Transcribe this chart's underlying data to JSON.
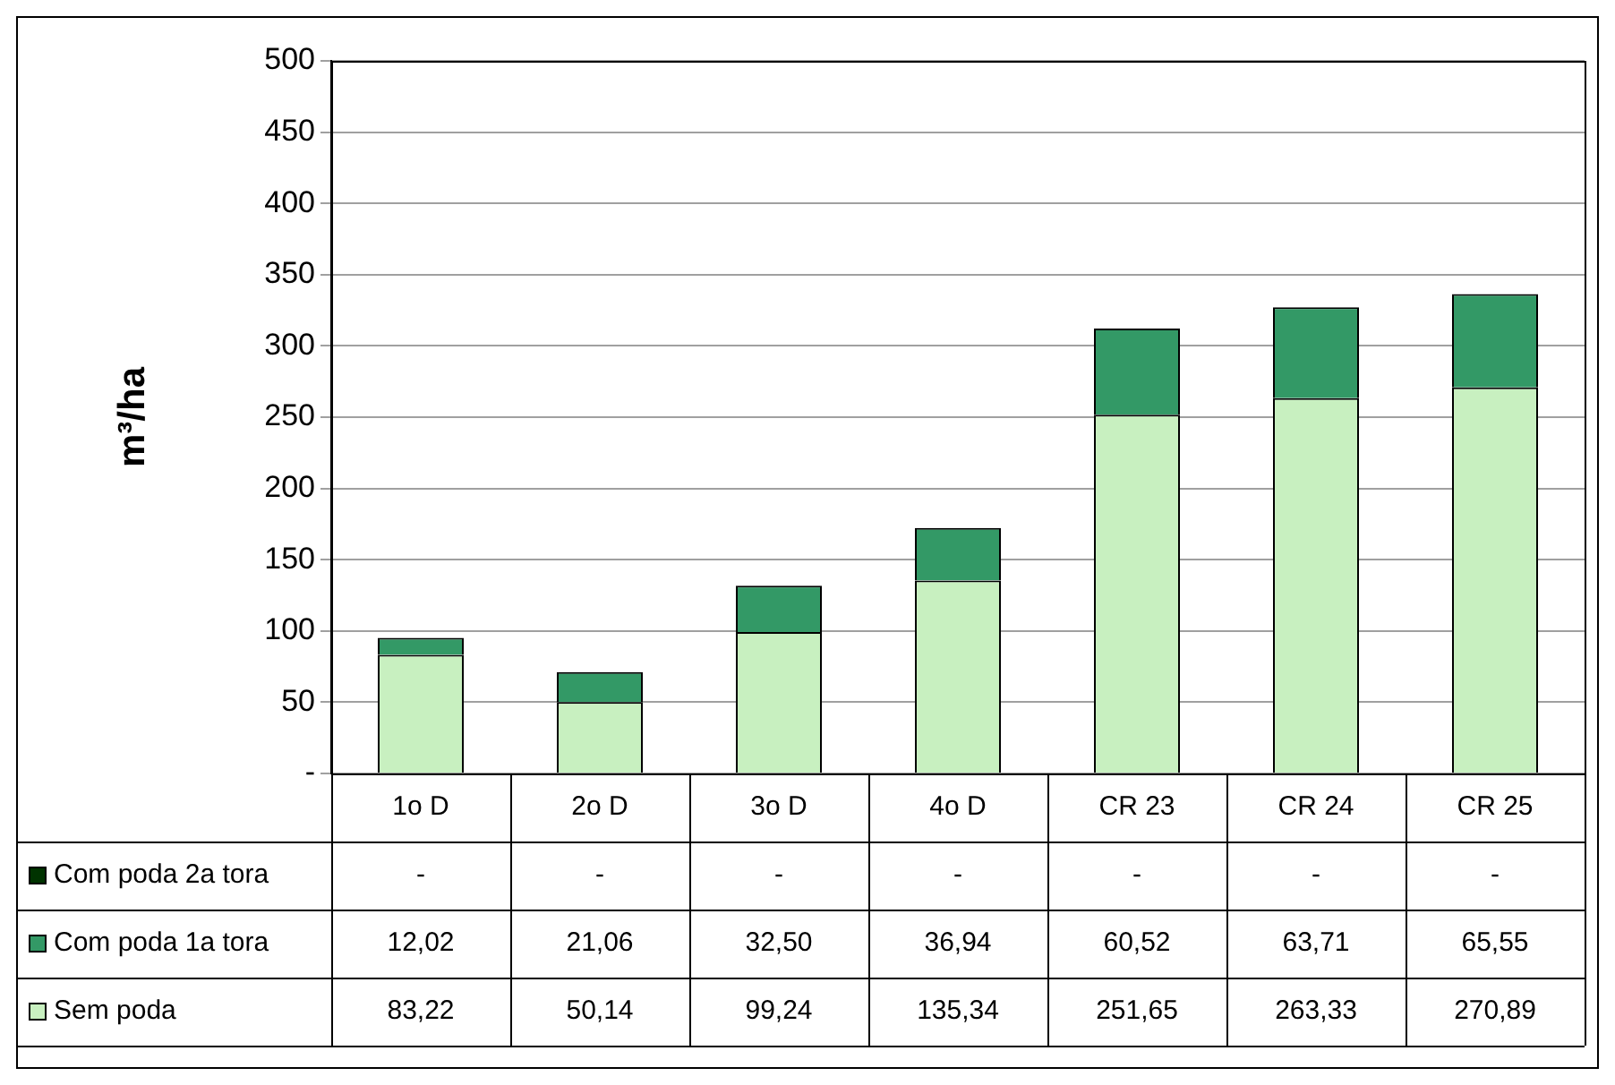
{
  "chart_data": {
    "type": "bar",
    "stacked": true,
    "ylabel": "m³/ha",
    "categories": [
      "1o D",
      "2o D",
      "3o D",
      "4o D",
      "CR 23",
      "CR 24",
      "CR 25"
    ],
    "series": [
      {
        "name": "Sem poda",
        "color": "#c8f0c0",
        "values": [
          83.22,
          50.14,
          99.24,
          135.34,
          251.65,
          263.33,
          270.89
        ],
        "value_labels": [
          "83,22",
          "50,14",
          "99,24",
          "135,34",
          "251,65",
          "263,33",
          "270,89"
        ]
      },
      {
        "name": "Com poda 1a tora",
        "color": "#339966",
        "values": [
          12.02,
          21.06,
          32.5,
          36.94,
          60.52,
          63.71,
          65.55
        ],
        "value_labels": [
          "12,02",
          "21,06",
          "32,50",
          "36,94",
          "60,52",
          "63,71",
          "65,55"
        ]
      },
      {
        "name": "Com poda 2a tora",
        "color": "#003300",
        "values": [
          null,
          null,
          null,
          null,
          null,
          null,
          null
        ],
        "value_labels": [
          "-",
          "-",
          "-",
          "-",
          "-",
          "-",
          "-"
        ]
      }
    ],
    "ylim": [
      0,
      500
    ],
    "yticks": [
      {
        "value": 0,
        "label": "-"
      },
      50,
      100,
      150,
      200,
      250,
      300,
      350,
      400,
      450,
      500
    ],
    "grid": "y",
    "legend": "bottom"
  }
}
